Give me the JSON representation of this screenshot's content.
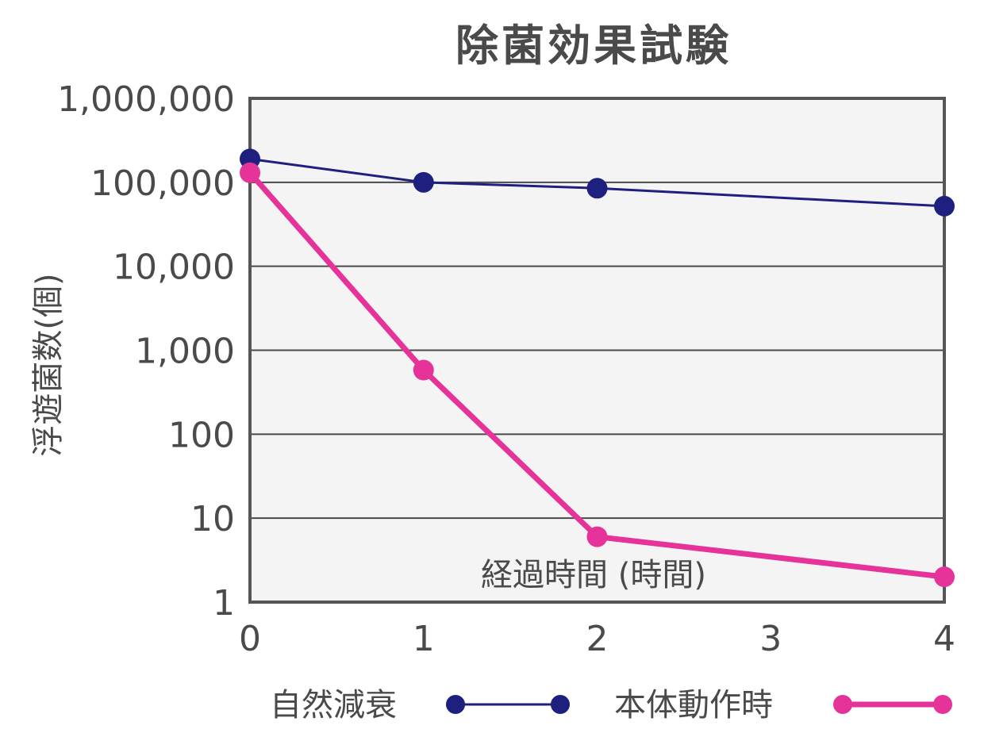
{
  "chart_data": {
    "type": "line",
    "title": "除菌効果試験",
    "xlabel": "経過時間 (時間)",
    "ylabel": "浮遊菌数(個)",
    "y_scale": "log",
    "xlim": [
      0,
      4
    ],
    "ylim": [
      1,
      1000000
    ],
    "grid": true,
    "x_ticks": [
      "0",
      "1",
      "2",
      "3",
      "4"
    ],
    "y_ticks": [
      "1",
      "10",
      "100",
      "1,000",
      "10,000",
      "100,000",
      "1,000,000"
    ],
    "legend_position": "bottom",
    "series": [
      {
        "name": "自然減衰",
        "color": "#1e2080",
        "x": [
          0,
          1,
          2,
          4
        ],
        "y": [
          190000,
          100000,
          85000,
          52000
        ]
      },
      {
        "name": "本体動作時",
        "color": "#e5339a",
        "x": [
          0,
          1,
          2,
          4
        ],
        "y": [
          130000,
          580,
          6,
          2
        ]
      }
    ],
    "colors": {
      "plot_background": "#f4f4f4",
      "frame": "#555555",
      "gridline": "#4a4a4a",
      "text": "#4a4a4a"
    }
  }
}
